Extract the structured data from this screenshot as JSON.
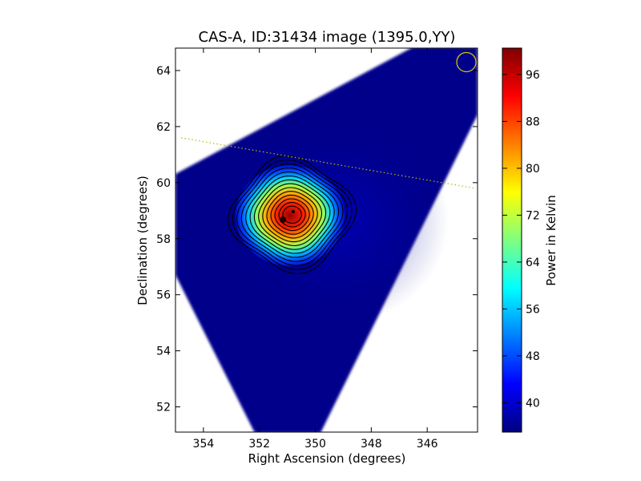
{
  "chart_data": {
    "type": "heatmap",
    "title": "CAS-A, ID:31434 image (1395.0,YY)",
    "xlabel": "Right Ascension (degrees)",
    "ylabel": "Declination (degrees)",
    "xlim": [
      355.0,
      344.2
    ],
    "ylim": [
      51.1,
      64.8
    ],
    "x_inverted": true,
    "x_ticks": [
      354,
      352,
      350,
      348,
      346
    ],
    "y_ticks": [
      52,
      54,
      56,
      58,
      60,
      62,
      64
    ],
    "colorbar": {
      "label": "Power in Kelvin",
      "colormap": "jet",
      "range": [
        35.0,
        100.5
      ],
      "ticks": [
        40,
        48,
        56,
        64,
        72,
        80,
        88,
        96
      ]
    },
    "source": {
      "ra": 351.0,
      "dec": 58.8,
      "peak": 100.5,
      "background": 35.5
    },
    "contour_levels": 14,
    "beam_circle": {
      "ra": 344.6,
      "dec": 64.3,
      "color": "#d4c000"
    },
    "dotted_line": {
      "points": [
        [
          354.8,
          61.6
        ],
        [
          344.3,
          59.8
        ]
      ],
      "color": "#b8b800"
    },
    "background_color": "#00007f",
    "grid": false
  }
}
